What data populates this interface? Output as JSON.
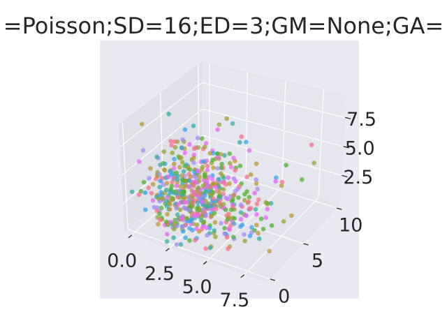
{
  "chart_data": {
    "type": "scatter",
    "projection": "3d",
    "title": "=Poisson;SD=16;ED=3;GM=None;GA=",
    "xlabel": "",
    "ylabel": "",
    "zlabel": "",
    "xlim": [
      -0.5,
      9.0
    ],
    "ylim": [
      -0.5,
      10.5
    ],
    "zlim": [
      0.0,
      9.5
    ],
    "x_ticks": [
      "0.0",
      "2.5",
      "5.0",
      "7.5"
    ],
    "x_tick_values": [
      0.0,
      2.5,
      5.0,
      7.5
    ],
    "y_ticks": [
      "0",
      "5",
      "10"
    ],
    "y_tick_values": [
      0,
      5,
      10
    ],
    "z_ticks": [
      "2.5",
      "5.0",
      "7.5"
    ],
    "z_tick_values": [
      2.5,
      5.0,
      7.5
    ],
    "grid": true,
    "style": "seaborn-darkgrid",
    "palette": [
      "#f77189",
      "#bb9832",
      "#50b131",
      "#36ada4",
      "#3ba3ec",
      "#e866f4",
      "#a48cf4",
      "#97a431"
    ],
    "point_count": 600,
    "distribution": "Poisson, mean about 3 on each axis",
    "seed": 16,
    "pane_color": "#eaeaf2",
    "grid_color": "#ffffff"
  }
}
